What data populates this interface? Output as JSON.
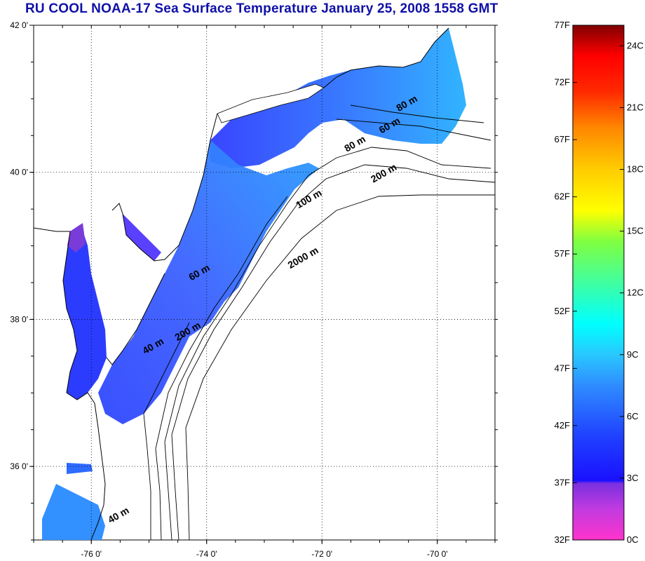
{
  "title": "RU COOL  NOAA-17 Sea Surface Temperature January 25, 2008 1558 GMT",
  "map": {
    "lon_range": [
      -77,
      -69
    ],
    "lat_range": [
      35,
      42
    ],
    "lon_ticks": [
      {
        "value": -76,
        "label": "-76 0'"
      },
      {
        "value": -74,
        "label": "-74 0'"
      },
      {
        "value": -72,
        "label": "-72 0'"
      },
      {
        "value": -70,
        "label": "-70 0'"
      }
    ],
    "lat_ticks": [
      {
        "value": 42,
        "label": "42 0'"
      },
      {
        "value": 40,
        "label": "40 0'"
      },
      {
        "value": 38,
        "label": "38 0'"
      },
      {
        "value": 36,
        "label": "36 0'"
      }
    ],
    "contour_labels": [
      {
        "text": "80 m",
        "lon": -70.5,
        "lat": 40.9
      },
      {
        "text": "60 m",
        "lon": -70.8,
        "lat": 40.6
      },
      {
        "text": "80 m",
        "lon": -71.4,
        "lat": 40.35
      },
      {
        "text": "200 m",
        "lon": -70.9,
        "lat": 39.95
      },
      {
        "text": "100 m",
        "lon": -72.2,
        "lat": 39.6
      },
      {
        "text": "2000 m",
        "lon": -72.3,
        "lat": 38.8
      },
      {
        "text": "60 m",
        "lon": -74.1,
        "lat": 38.6
      },
      {
        "text": "200 m",
        "lon": -74.3,
        "lat": 37.8
      },
      {
        "text": "40 m",
        "lon": -74.9,
        "lat": 37.6
      },
      {
        "text": "40 m",
        "lon": -75.5,
        "lat": 35.3
      }
    ]
  },
  "colorbar": {
    "fahrenheit": [
      "77F",
      "72F",
      "67F",
      "62F",
      "57F",
      "52F",
      "47F",
      "42F",
      "37F",
      "32F"
    ],
    "celsius": [
      "24C",
      "21C",
      "18C",
      "15C",
      "12C",
      "9C",
      "6C",
      "3C",
      "0C"
    ]
  },
  "colors": {
    "title": "#1010a8",
    "water_warm": "#2ea7ff",
    "water_cold": "#2c3cff",
    "water_estuary": "#7a3cd8"
  }
}
